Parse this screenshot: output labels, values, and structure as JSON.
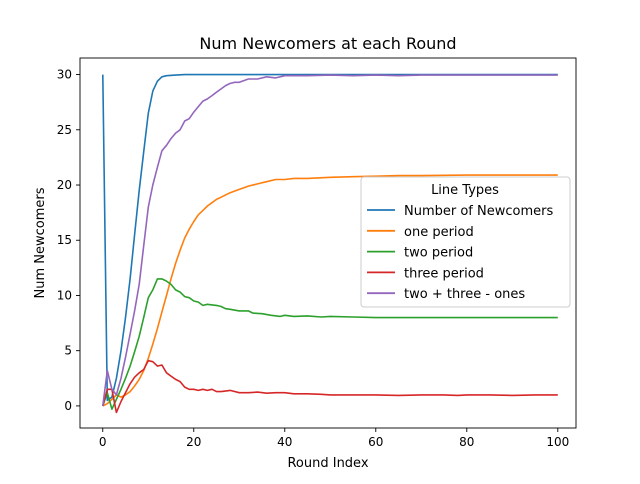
{
  "chart_data": {
    "type": "line",
    "title": "Num Newcomers at each Round",
    "xlabel": "Round Index",
    "ylabel": "Num Newcomers",
    "xlim": [
      -5,
      104
    ],
    "ylim": [
      -2,
      31.5
    ],
    "xticks": [
      0,
      20,
      40,
      60,
      80,
      100
    ],
    "yticks": [
      0,
      5,
      10,
      15,
      20,
      25,
      30
    ],
    "legend": {
      "title": "Line Types",
      "location": "center-right"
    },
    "series": [
      {
        "name": "Number of Newcomers",
        "color": "#1f77b4",
        "points": [
          [
            0,
            30
          ],
          [
            1,
            0.5
          ],
          [
            2,
            0.8
          ],
          [
            3,
            2.5
          ],
          [
            4,
            5
          ],
          [
            5,
            8
          ],
          [
            6,
            11.5
          ],
          [
            7,
            15.5
          ],
          [
            8,
            19.5
          ],
          [
            9,
            23
          ],
          [
            10,
            26.5
          ],
          [
            11,
            28.5
          ],
          [
            12,
            29.4
          ],
          [
            13,
            29.8
          ],
          [
            14,
            29.9
          ],
          [
            16,
            29.95
          ],
          [
            18,
            30
          ],
          [
            100,
            30
          ]
        ]
      },
      {
        "name": "one period",
        "color": "#ff7f0e",
        "points": [
          [
            0,
            0
          ],
          [
            1,
            0.2
          ],
          [
            2,
            0.6
          ],
          [
            3,
            1.0
          ],
          [
            4,
            0.8
          ],
          [
            5,
            1.0
          ],
          [
            6,
            1.3
          ],
          [
            7,
            1.8
          ],
          [
            8,
            2.4
          ],
          [
            9,
            3.2
          ],
          [
            10,
            4.3
          ],
          [
            11,
            5.6
          ],
          [
            12,
            7.0
          ],
          [
            13,
            8.5
          ],
          [
            14,
            10.0
          ],
          [
            15,
            11.5
          ],
          [
            16,
            12.9
          ],
          [
            17,
            14.1
          ],
          [
            18,
            15.2
          ],
          [
            19,
            16.0
          ],
          [
            20,
            16.7
          ],
          [
            21,
            17.3
          ],
          [
            22,
            17.7
          ],
          [
            23,
            18.1
          ],
          [
            24,
            18.4
          ],
          [
            25,
            18.7
          ],
          [
            26,
            18.9
          ],
          [
            28,
            19.3
          ],
          [
            30,
            19.6
          ],
          [
            32,
            19.9
          ],
          [
            34,
            20.1
          ],
          [
            36,
            20.3
          ],
          [
            38,
            20.5
          ],
          [
            40,
            20.5
          ],
          [
            42,
            20.6
          ],
          [
            45,
            20.6
          ],
          [
            50,
            20.7
          ],
          [
            55,
            20.75
          ],
          [
            60,
            20.8
          ],
          [
            65,
            20.85
          ],
          [
            70,
            20.85
          ],
          [
            80,
            20.9
          ],
          [
            90,
            20.9
          ],
          [
            100,
            20.9
          ]
        ]
      },
      {
        "name": "two period",
        "color": "#2ca02c",
        "points": [
          [
            0,
            0
          ],
          [
            1,
            1.2
          ],
          [
            2,
            -0.3
          ],
          [
            3,
            0.6
          ],
          [
            4,
            1.5
          ],
          [
            5,
            2.5
          ],
          [
            6,
            3.6
          ],
          [
            7,
            4.9
          ],
          [
            8,
            6.3
          ],
          [
            9,
            8.0
          ],
          [
            10,
            9.8
          ],
          [
            11,
            10.5
          ],
          [
            12,
            11.5
          ],
          [
            13,
            11.5
          ],
          [
            14,
            11.3
          ],
          [
            15,
            11.0
          ],
          [
            16,
            10.5
          ],
          [
            17,
            10.3
          ],
          [
            18,
            9.9
          ],
          [
            19,
            9.8
          ],
          [
            20,
            9.5
          ],
          [
            21,
            9.4
          ],
          [
            22,
            9.1
          ],
          [
            23,
            9.2
          ],
          [
            24,
            9.15
          ],
          [
            25,
            9.1
          ],
          [
            26,
            9.0
          ],
          [
            27,
            8.8
          ],
          [
            28,
            8.75
          ],
          [
            30,
            8.6
          ],
          [
            32,
            8.6
          ],
          [
            33,
            8.4
          ],
          [
            35,
            8.35
          ],
          [
            37,
            8.2
          ],
          [
            39,
            8.1
          ],
          [
            40,
            8.2
          ],
          [
            42,
            8.1
          ],
          [
            45,
            8.15
          ],
          [
            48,
            8.05
          ],
          [
            50,
            8.1
          ],
          [
            55,
            8.05
          ],
          [
            60,
            8.0
          ],
          [
            65,
            8.0
          ],
          [
            70,
            8.0
          ],
          [
            80,
            8.0
          ],
          [
            90,
            8.0
          ],
          [
            100,
            8.0
          ]
        ]
      },
      {
        "name": "three period",
        "color": "#d62728",
        "points": [
          [
            0,
            0
          ],
          [
            1,
            1.5
          ],
          [
            2,
            1.5
          ],
          [
            3,
            -0.6
          ],
          [
            4,
            0.4
          ],
          [
            5,
            1.2
          ],
          [
            6,
            2.0
          ],
          [
            7,
            2.6
          ],
          [
            8,
            3.0
          ],
          [
            9,
            3.3
          ],
          [
            10,
            4.1
          ],
          [
            11,
            4.0
          ],
          [
            12,
            3.6
          ],
          [
            13,
            3.7
          ],
          [
            14,
            3.0
          ],
          [
            15,
            2.7
          ],
          [
            16,
            2.4
          ],
          [
            17,
            2.2
          ],
          [
            18,
            1.7
          ],
          [
            19,
            1.5
          ],
          [
            20,
            1.5
          ],
          [
            21,
            1.4
          ],
          [
            22,
            1.5
          ],
          [
            23,
            1.4
          ],
          [
            24,
            1.5
          ],
          [
            25,
            1.3
          ],
          [
            26,
            1.3
          ],
          [
            28,
            1.4
          ],
          [
            30,
            1.2
          ],
          [
            32,
            1.2
          ],
          [
            34,
            1.25
          ],
          [
            36,
            1.15
          ],
          [
            38,
            1.2
          ],
          [
            40,
            1.2
          ],
          [
            42,
            1.1
          ],
          [
            45,
            1.1
          ],
          [
            48,
            1.05
          ],
          [
            50,
            1.0
          ],
          [
            55,
            1.0
          ],
          [
            60,
            1.0
          ],
          [
            65,
            0.95
          ],
          [
            70,
            1.0
          ],
          [
            75,
            1.0
          ],
          [
            78,
            0.95
          ],
          [
            80,
            1.0
          ],
          [
            85,
            1.0
          ],
          [
            90,
            0.95
          ],
          [
            95,
            1.0
          ],
          [
            100,
            1.0
          ]
        ]
      },
      {
        "name": "two + three - ones",
        "color": "#9467bd",
        "points": [
          [
            0,
            0
          ],
          [
            1,
            3.2
          ],
          [
            2,
            1.5
          ],
          [
            3,
            1.0
          ],
          [
            4,
            2.5
          ],
          [
            5,
            4.4
          ],
          [
            6,
            6.5
          ],
          [
            7,
            8.6
          ],
          [
            8,
            11.0
          ],
          [
            9,
            14.5
          ],
          [
            10,
            18.0
          ],
          [
            11,
            20.0
          ],
          [
            12,
            21.6
          ],
          [
            13,
            23.1
          ],
          [
            14,
            23.6
          ],
          [
            15,
            24.2
          ],
          [
            16,
            24.7
          ],
          [
            17,
            25.0
          ],
          [
            18,
            25.8
          ],
          [
            19,
            26.0
          ],
          [
            20,
            26.6
          ],
          [
            21,
            27.1
          ],
          [
            22,
            27.6
          ],
          [
            23,
            27.8
          ],
          [
            24,
            28.1
          ],
          [
            25,
            28.4
          ],
          [
            26,
            28.7
          ],
          [
            27,
            29.0
          ],
          [
            28,
            29.2
          ],
          [
            29,
            29.3
          ],
          [
            30,
            29.3
          ],
          [
            32,
            29.6
          ],
          [
            34,
            29.6
          ],
          [
            36,
            29.8
          ],
          [
            38,
            29.7
          ],
          [
            40,
            29.9
          ],
          [
            45,
            29.9
          ],
          [
            50,
            29.95
          ],
          [
            55,
            29.9
          ],
          [
            60,
            29.95
          ],
          [
            65,
            29.9
          ],
          [
            70,
            29.95
          ],
          [
            80,
            29.95
          ],
          [
            90,
            29.95
          ],
          [
            100,
            29.95
          ]
        ]
      }
    ]
  }
}
